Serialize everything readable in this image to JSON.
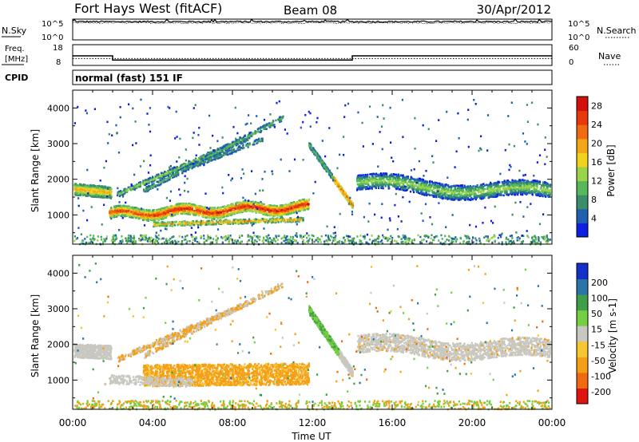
{
  "header": {
    "station": "Fort Hays West (fitACF)",
    "beam": "Beam 08",
    "date": "30/Apr/2012"
  },
  "noise_panel": {
    "left_label": "N.Sky",
    "left_ticks": [
      "10^5",
      "10^0"
    ],
    "right_label": "N.Search",
    "right_ticks": [
      "10^5",
      "10^0"
    ]
  },
  "freq_panel": {
    "left_label_line1": "Freq.",
    "left_label_line2": "[MHz]",
    "left_ticks": [
      "18",
      "8"
    ],
    "right_label": "Nave",
    "right_ticks": [
      "60",
      "0"
    ]
  },
  "cpid_panel": {
    "label": "CPID",
    "value": "normal (fast) 151 IF"
  },
  "x_axis": {
    "label": "Time UT",
    "ticks": [
      "00:00",
      "04:00",
      "08:00",
      "12:00",
      "16:00",
      "20:00",
      "00:00"
    ]
  },
  "colors": {
    "power": [
      "#0b20e0",
      "#1f5fb0",
      "#3a8f6a",
      "#56b85a",
      "#9bd34a",
      "#f2d21c",
      "#f2a516",
      "#ef6a10",
      "#e63a0c",
      "#d2110b"
    ],
    "velocity": [
      "#e0140e",
      "#f06a10",
      "#f59f16",
      "#f5c630",
      "#c8c8c0",
      "#76cf40",
      "#3f9e4a",
      "#2a74a8",
      "#1530c8"
    ]
  },
  "chart_data": [
    {
      "type": "line",
      "name": "noise",
      "xlabel": "",
      "ylabel": "N.Sky",
      "ylim": [
        0,
        5
      ],
      "x_hours": [
        0,
        24
      ],
      "series": [
        {
          "name": "N.Sky",
          "mean_log10": 4.4
        },
        {
          "name": "N.Search",
          "mean_log10": 4.1
        }
      ]
    },
    {
      "type": "line",
      "name": "frequency",
      "ylabel": "Freq. [MHz]",
      "ylim": [
        8,
        18
      ],
      "series": [
        {
          "name": "Freq.",
          "x": [
            0,
            2,
            2,
            14,
            14,
            24
          ],
          "values": [
            12.6,
            12.6,
            10.6,
            10.6,
            12.6,
            12.6
          ]
        },
        {
          "name": "Nave",
          "x": [
            0,
            24
          ],
          "values": [
            20,
            20
          ],
          "axis": "right",
          "ylim": [
            0,
            60
          ]
        }
      ]
    },
    {
      "type": "heatmap",
      "name": "power",
      "xlabel": "Time UT",
      "ylabel": "Slant Range [km]",
      "y_ticks": [
        "1000",
        "2000",
        "3000",
        "4000"
      ],
      "ylim": [
        180,
        4500
      ],
      "xlim": [
        0,
        24
      ],
      "colorbar": {
        "label": "Power [dB]",
        "ticks": [
          "4",
          "8",
          "12",
          "16",
          "20",
          "24",
          "28"
        ],
        "range": [
          0,
          30
        ]
      },
      "features": [
        {
          "x": [
            0,
            1.8
          ],
          "range_km": [
            1650,
            1750
          ],
          "value_db": 14
        },
        {
          "x": [
            1.8,
            11.8
          ],
          "range_km": [
            1050,
            1300
          ],
          "value_db": 24
        },
        {
          "x": [
            2,
            12
          ],
          "range_km": [
            1650,
            3700
          ],
          "value_db": 12
        },
        {
          "x": [
            12,
            14
          ],
          "range_km": [
            3000,
            1300
          ],
          "value_db": 20
        },
        {
          "x": [
            14.2,
            24
          ],
          "range_km": [
            1600,
            2200
          ],
          "value_db": 10
        }
      ]
    },
    {
      "type": "heatmap",
      "name": "velocity",
      "xlabel": "Time UT",
      "ylabel": "Slant Range [km]",
      "y_ticks": [
        "1000",
        "2000",
        "3000",
        "4000"
      ],
      "ylim": [
        180,
        4500
      ],
      "xlim": [
        0,
        24
      ],
      "colorbar": {
        "label": "Velocity [m s-1]",
        "ticks": [
          "-200",
          "-100",
          "-50",
          "-15",
          "15",
          "50",
          "100",
          "200"
        ],
        "range": [
          -250,
          250
        ]
      },
      "features": [
        {
          "x": [
            0,
            2
          ],
          "range_km": [
            1700,
            2000
          ],
          "value_ms": 0
        },
        {
          "x": [
            4,
            12
          ],
          "range_km": [
            850,
            1450
          ],
          "value_ms": -60
        },
        {
          "x": [
            12,
            14
          ],
          "range_km": [
            1300,
            3000
          ],
          "value_ms": 30
        },
        {
          "x": [
            14.2,
            24
          ],
          "range_km": [
            1600,
            2300
          ],
          "value_ms": 0
        }
      ]
    }
  ]
}
